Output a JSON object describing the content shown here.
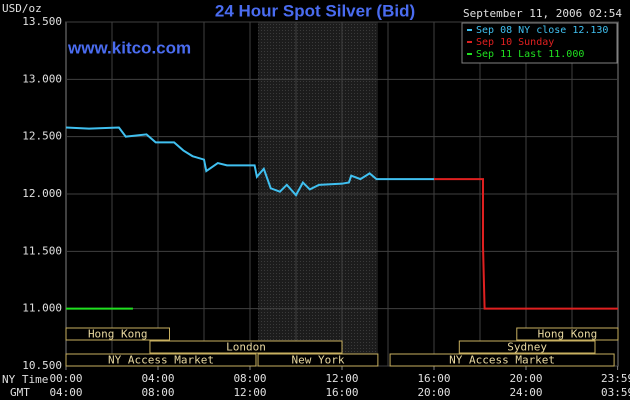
{
  "chart_data": {
    "type": "line",
    "title": "24 Hour Spot Silver (Bid)",
    "timestamp": "September 11, 2006 02:54",
    "watermark": "www.kitco.com",
    "y_label": "USD/oz",
    "x_label": "NY Time",
    "x2_label": "GMT",
    "xlim": [
      0,
      24
    ],
    "ylim": [
      10.5,
      13.5
    ],
    "yticks": [
      {
        "value": 10.5,
        "label": "10.500"
      },
      {
        "value": 11,
        "label": "11.000"
      },
      {
        "value": 11.5,
        "label": "11.500"
      },
      {
        "value": 12,
        "label": "12.000"
      },
      {
        "value": 12.5,
        "label": "12.500"
      },
      {
        "value": 13,
        "label": "13.000"
      },
      {
        "value": 13.5,
        "label": "13.500"
      }
    ],
    "xticks": [
      {
        "value": 0,
        "label": "00:00"
      },
      {
        "value": 4,
        "label": "04:00"
      },
      {
        "value": 8,
        "label": "08:00"
      },
      {
        "value": 12,
        "label": "12:00"
      },
      {
        "value": 16,
        "label": "16:00"
      },
      {
        "value": 20,
        "label": "20:00"
      },
      {
        "value": 23.983,
        "label": "23:59"
      }
    ],
    "x2tick_labels": [
      "04:00",
      "08:00",
      "12:00",
      "16:00",
      "20:00",
      "24:00",
      "03:59"
    ],
    "xgrid": [
      2,
      4,
      6,
      8,
      10,
      12,
      14,
      16,
      18,
      20,
      22
    ],
    "grid": true,
    "shaded": [
      8.35,
      13.56
    ],
    "series": [
      {
        "name": "Sep 08 NY close 12.130",
        "color": "#40c0f0",
        "x": [
          0,
          1,
          2.3,
          2.6,
          3.5,
          3.9,
          4.7,
          5.1,
          5.5,
          6,
          6.1,
          6.6,
          7,
          8.2,
          8.3,
          8.6,
          8.9,
          9.3,
          9.6,
          10,
          10.3,
          10.6,
          11,
          12,
          12.3,
          12.4,
          12.8,
          13.2,
          13.5,
          16
        ],
        "values": [
          12.58,
          12.57,
          12.58,
          12.5,
          12.52,
          12.45,
          12.45,
          12.38,
          12.33,
          12.3,
          12.2,
          12.27,
          12.25,
          12.25,
          12.15,
          12.22,
          12.05,
          12.02,
          12.08,
          11.99,
          12.1,
          12.04,
          12.08,
          12.09,
          12.1,
          12.16,
          12.13,
          12.18,
          12.13,
          12.13
        ]
      },
      {
        "name": "Sep 10 Sunday",
        "color": "#e02020",
        "x": [
          16,
          18.13,
          18.13,
          18.2,
          24
        ],
        "values": [
          12.13,
          12.13,
          11.55,
          11.0,
          11.0
        ]
      },
      {
        "name": "Sep 11 Last 11.000",
        "color": "#20e020",
        "x": [
          0,
          2.91
        ],
        "values": [
          11.0,
          11.0
        ]
      }
    ],
    "session_rows": [
      [
        {
          "label": "Hong Kong",
          "start": 0,
          "end": 4.5
        },
        {
          "label": "Hong Kong",
          "start": 19.6,
          "end": 24
        }
      ],
      [
        {
          "label": "London",
          "start": 3.65,
          "end": 12
        },
        {
          "label": "Sydney",
          "start": 17.1,
          "end": 23
        }
      ],
      [
        {
          "label": "NY Access Market",
          "start": 0,
          "end": 8.26
        },
        {
          "label": "New York",
          "start": 8.35,
          "end": 13.56
        },
        {
          "label": "NY Access Market",
          "start": 14.09,
          "end": 23.83
        }
      ]
    ]
  }
}
